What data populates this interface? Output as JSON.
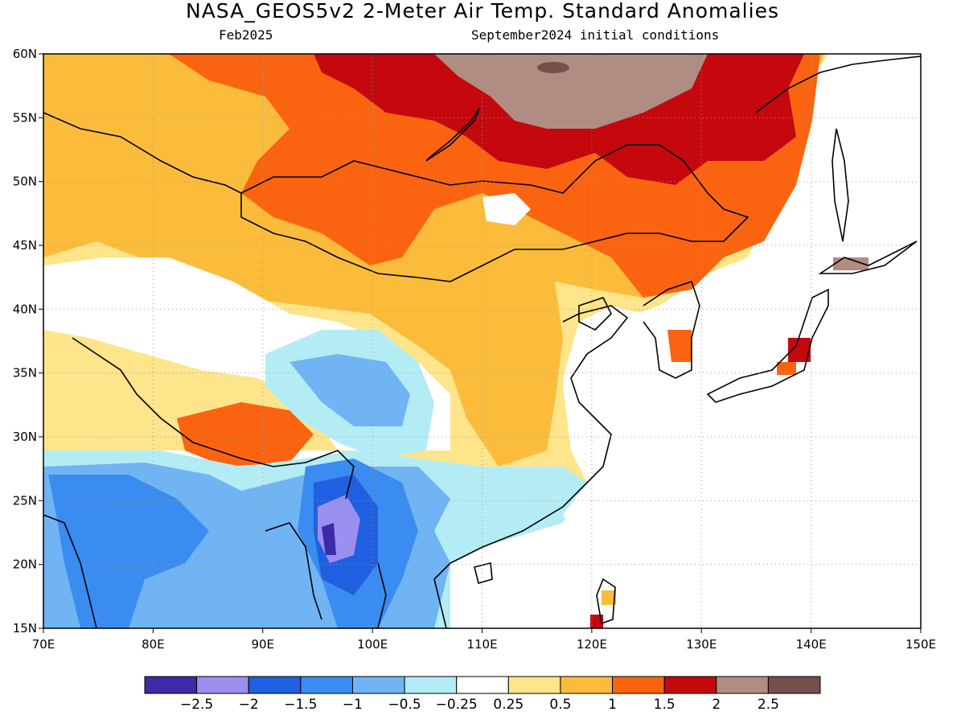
{
  "title": "NASA_GEOS5v2 2-Meter Air Temp. Standard Anomalies",
  "subtitle_left": "Feb2025",
  "subtitle_right": "September2024 initial conditions",
  "map": {
    "lon_range": [
      70,
      150
    ],
    "lat_range": [
      15,
      60
    ],
    "lon_ticks": [
      "70E",
      "80E",
      "90E",
      "100E",
      "110E",
      "120E",
      "130E",
      "140E",
      "150E"
    ],
    "lat_ticks": [
      "15N",
      "20N",
      "25N",
      "30N",
      "35N",
      "40N",
      "45N",
      "50N",
      "55N",
      "60N"
    ],
    "grid": true
  },
  "colorbar": {
    "colors": [
      "#3d2aa8",
      "#9b8ff0",
      "#2060e0",
      "#3a8cf0",
      "#70b4f4",
      "#b4ecf6",
      "#ffffff",
      "#fee48a",
      "#fbbc3c",
      "#fa6410",
      "#c4080e",
      "#b08c82",
      "#74504a"
    ],
    "labels": [
      "−2.5",
      "−2",
      "−1.5",
      "−1",
      "−0.5",
      "−0.25",
      "0.25",
      "0.5",
      "1",
      "1.5",
      "2",
      "2.5"
    ]
  }
}
